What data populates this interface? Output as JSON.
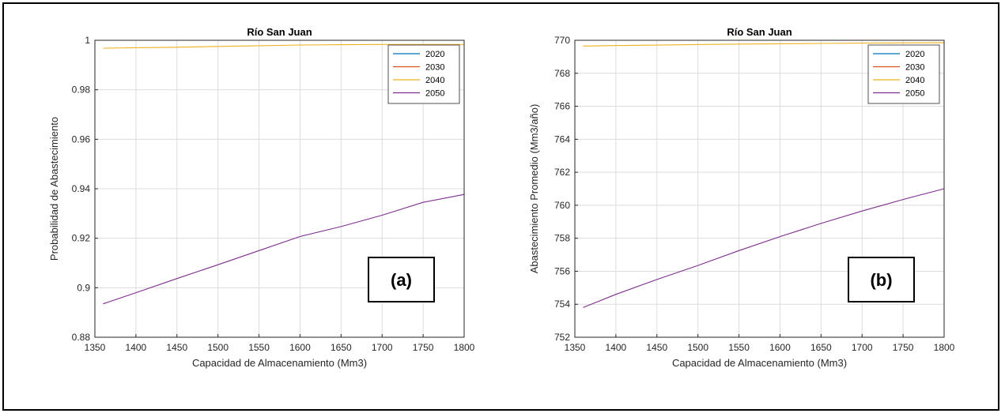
{
  "chart_data": [
    {
      "type": "line",
      "title": "Río San Juan",
      "xlabel": "Capacidad de Almacenamiento (Mm3)",
      "ylabel": "Probabilidad de Abastecimiento",
      "xlim": [
        1350,
        1800
      ],
      "ylim": [
        0.88,
        1.0
      ],
      "xticks": [
        "1350",
        "1400",
        "1450",
        "1500",
        "1550",
        "1600",
        "1650",
        "1700",
        "1750",
        "1800"
      ],
      "yticks": [
        "0.88",
        "0.9",
        "0.92",
        "0.94",
        "0.96",
        "0.98",
        "1"
      ],
      "grid": true,
      "legend_position": "top-right",
      "panel_label": "(a)",
      "series": [
        {
          "name": "2020",
          "color": "#0072BD",
          "x": [
            1360,
            1400,
            1450,
            1500,
            1550,
            1600,
            1650,
            1700,
            1750,
            1800
          ],
          "y": [
            1.0,
            1.0,
            1.0,
            1.0,
            1.0,
            1.0,
            1.0,
            1.0,
            1.0,
            1.0
          ]
        },
        {
          "name": "2030",
          "color": "#D95319",
          "x": [
            1360,
            1400,
            1450,
            1500,
            1550,
            1600,
            1650,
            1700,
            1750,
            1800
          ],
          "y": [
            1.0,
            1.0,
            1.0,
            1.0,
            1.0,
            1.0,
            1.0,
            1.0,
            1.0,
            1.0
          ]
        },
        {
          "name": "2040",
          "color": "#EDB120",
          "x": [
            1360,
            1400,
            1450,
            1500,
            1550,
            1600,
            1650,
            1700,
            1750,
            1800
          ],
          "y": [
            0.9968,
            0.997,
            0.9972,
            0.9975,
            0.9978,
            0.9981,
            0.9982,
            0.9983,
            0.9983,
            0.9983
          ]
        },
        {
          "name": "2050",
          "color": "#7E2F8E",
          "x": [
            1360,
            1400,
            1450,
            1500,
            1550,
            1600,
            1650,
            1700,
            1750,
            1800
          ],
          "y": [
            0.8935,
            0.898,
            0.9037,
            0.9093,
            0.915,
            0.9207,
            0.9247,
            0.9293,
            0.9345,
            0.9377
          ]
        }
      ]
    },
    {
      "type": "line",
      "title": "Río San Juan",
      "xlabel": "Capacidad de Almacenamiento (Mm3)",
      "ylabel": "Abastecimiento Promedio (Mm3/año)",
      "xlim": [
        1350,
        1800
      ],
      "ylim": [
        752,
        770
      ],
      "xticks": [
        "1350",
        "1400",
        "1450",
        "1500",
        "1550",
        "1600",
        "1650",
        "1700",
        "1750",
        "1800"
      ],
      "yticks": [
        "752",
        "754",
        "756",
        "758",
        "760",
        "762",
        "764",
        "766",
        "768",
        "770"
      ],
      "grid": true,
      "legend_position": "top-right",
      "panel_label": "(b)",
      "series": [
        {
          "name": "2020",
          "color": "#0072BD",
          "x": [
            1360,
            1400,
            1450,
            1500,
            1550,
            1600,
            1650,
            1700,
            1750,
            1800
          ],
          "y": [
            770,
            770,
            770,
            770,
            770,
            770,
            770,
            770,
            770,
            770
          ]
        },
        {
          "name": "2030",
          "color": "#D95319",
          "x": [
            1360,
            1400,
            1450,
            1500,
            1550,
            1600,
            1650,
            1700,
            1750,
            1800
          ],
          "y": [
            770,
            770,
            770,
            770,
            770,
            770,
            770,
            770,
            770,
            770
          ]
        },
        {
          "name": "2040",
          "color": "#EDB120",
          "x": [
            1360,
            1400,
            1450,
            1500,
            1550,
            1600,
            1650,
            1700,
            1750,
            1800
          ],
          "y": [
            769.65,
            769.68,
            769.71,
            769.74,
            769.77,
            769.79,
            769.81,
            769.83,
            769.84,
            769.85
          ]
        },
        {
          "name": "2050",
          "color": "#7E2F8E",
          "x": [
            1360,
            1400,
            1450,
            1500,
            1550,
            1600,
            1650,
            1700,
            1750,
            1800
          ],
          "y": [
            753.8,
            754.6,
            755.5,
            756.35,
            757.25,
            758.1,
            758.9,
            759.65,
            760.35,
            761.0
          ]
        }
      ]
    }
  ]
}
